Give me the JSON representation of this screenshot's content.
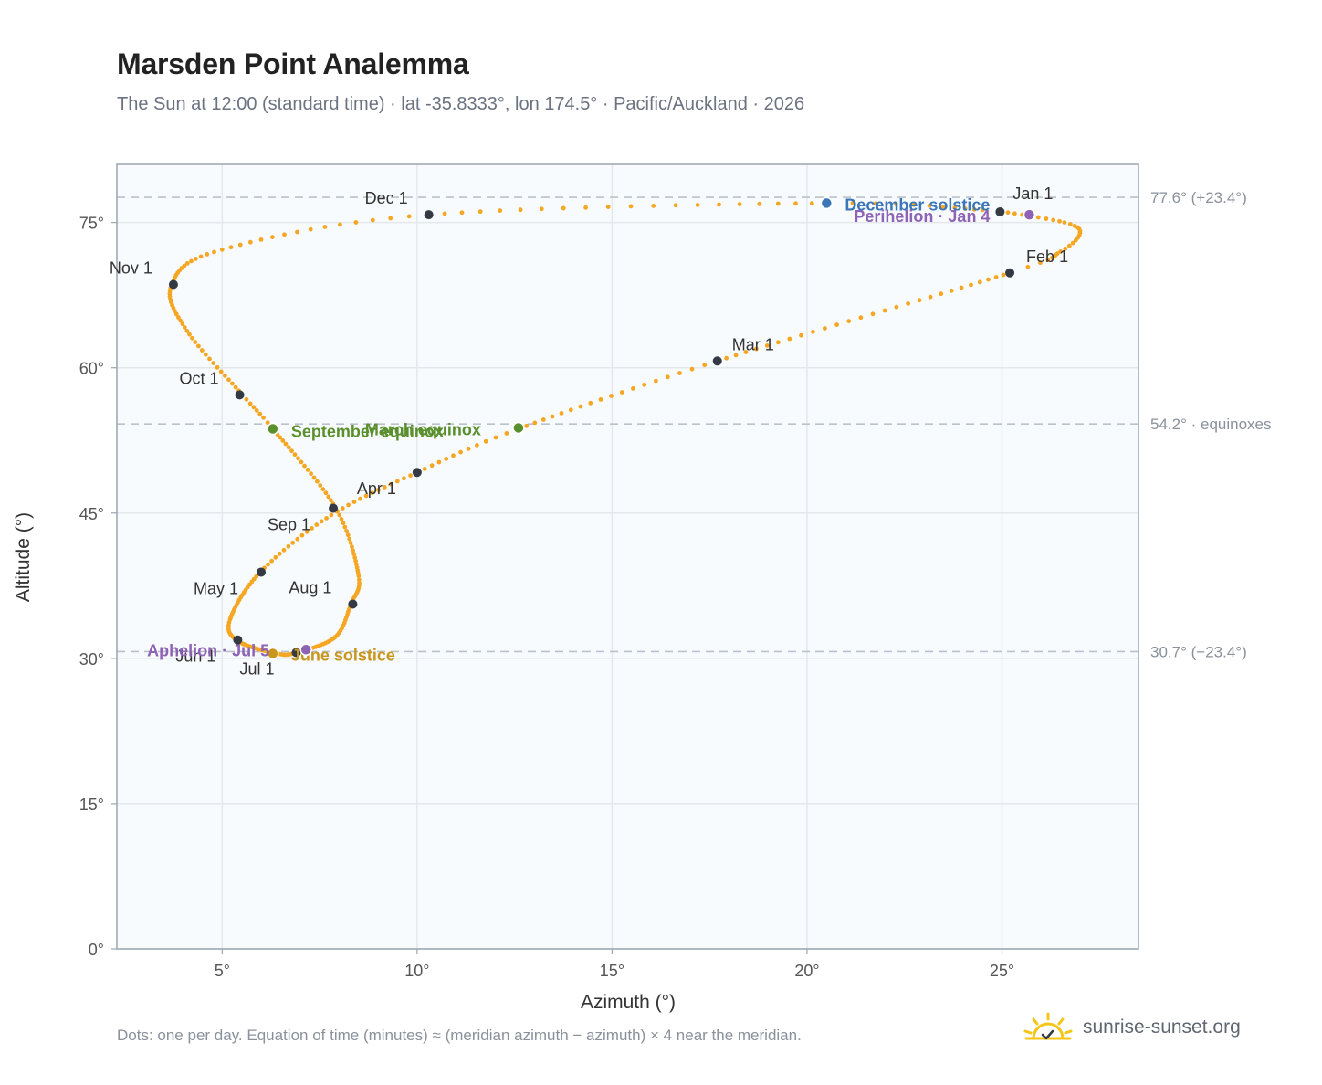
{
  "header": {
    "title": "Marsden Point Analemma",
    "subtitle": "The Sun at 12:00 (standard time) · lat -35.8333°, lon 174.5° · Pacific/Auckland · 2026"
  },
  "footer": {
    "note": "Dots: one per day. Equation of time (minutes) ≈ (meridian azimuth − azimuth) × 4 near the meridian.",
    "brand": "sunrise-sunset.org",
    "logo_icon": "sun-checkmark-icon"
  },
  "colors": {
    "curve": "#f5a623",
    "month_marker": "#333a44",
    "equinox": "#5a8f2e",
    "december_solstice": "#3a76b8",
    "june_solstice": "#c8961d",
    "apsis": "#8e63b5",
    "reference_line": "#b9c1ca",
    "plot_background": "#f8fbfd"
  },
  "chart_data": {
    "type": "scatter",
    "title": "Marsden Point Analemma",
    "xlabel": "Azimuth (°)",
    "ylabel": "Altitude (°)",
    "xlim": [
      2.3,
      28.5
    ],
    "ylim": [
      0,
      81
    ],
    "x_ticks": [
      5,
      10,
      15,
      20,
      25
    ],
    "x_tick_labels": [
      "5°",
      "10°",
      "15°",
      "20°",
      "25°"
    ],
    "y_ticks": [
      0,
      15,
      30,
      45,
      60,
      75
    ],
    "y_tick_labels": [
      "0°",
      "15°",
      "30°",
      "45°",
      "60°",
      "75°"
    ],
    "grid": true,
    "series": [
      {
        "style": "daily-dots",
        "points_per_day": 1,
        "path_keypoints": [
          {
            "day": 1,
            "az": 24.9,
            "alt": 76.2
          },
          {
            "day": 11,
            "az": 26.6,
            "alt": 75.0
          },
          {
            "day": 17,
            "az": 27.0,
            "alt": 73.9
          },
          {
            "day": 24,
            "az": 26.5,
            "alt": 72.0
          },
          {
            "day": 32,
            "az": 25.2,
            "alt": 69.8
          },
          {
            "day": 60,
            "az": 17.7,
            "alt": 60.7
          },
          {
            "day": 79,
            "az": 12.6,
            "alt": 53.7
          },
          {
            "day": 91,
            "az": 10.0,
            "alt": 49.2
          },
          {
            "day": 105,
            "az": 7.8,
            "alt": 44.8
          },
          {
            "day": 121,
            "az": 6.0,
            "alt": 39.0
          },
          {
            "day": 141,
            "az": 5.2,
            "alt": 34.0
          },
          {
            "day": 152,
            "az": 5.4,
            "alt": 31.8
          },
          {
            "day": 172,
            "az": 6.4,
            "alt": 30.5
          },
          {
            "day": 182,
            "az": 6.9,
            "alt": 30.6
          },
          {
            "day": 200,
            "az": 7.9,
            "alt": 32.2
          },
          {
            "day": 213,
            "az": 8.3,
            "alt": 35.6
          },
          {
            "day": 225,
            "az": 8.5,
            "alt": 38.5
          },
          {
            "day": 244,
            "az": 7.9,
            "alt": 45.6
          },
          {
            "day": 266,
            "az": 6.3,
            "alt": 53.7
          },
          {
            "day": 274,
            "az": 5.5,
            "alt": 57.3
          },
          {
            "day": 290,
            "az": 4.1,
            "alt": 63.8
          },
          {
            "day": 305,
            "az": 3.7,
            "alt": 68.5
          },
          {
            "day": 320,
            "az": 5.0,
            "alt": 72.2
          },
          {
            "day": 335,
            "az": 10.3,
            "alt": 75.8
          },
          {
            "day": 355,
            "az": 20.5,
            "alt": 77.0
          },
          {
            "day": 365,
            "az": 24.5,
            "alt": 76.3
          }
        ]
      }
    ],
    "month_markers": [
      {
        "label": "Jan 1",
        "az": 24.95,
        "alt": 76.1
      },
      {
        "label": "Feb 1",
        "az": 25.2,
        "alt": 69.8
      },
      {
        "label": "Mar 1",
        "az": 17.7,
        "alt": 60.7
      },
      {
        "label": "Apr 1",
        "az": 10.0,
        "alt": 49.2
      },
      {
        "label": "May 1",
        "az": 6.0,
        "alt": 38.9
      },
      {
        "label": "Jun 1",
        "az": 5.4,
        "alt": 31.9
      },
      {
        "label": "Jul 1",
        "az": 6.9,
        "alt": 30.6
      },
      {
        "label": "Aug 1",
        "az": 8.35,
        "alt": 35.6
      },
      {
        "label": "Sep 1",
        "az": 7.85,
        "alt": 45.5
      },
      {
        "label": "Oct 1",
        "az": 5.45,
        "alt": 57.2
      },
      {
        "label": "Nov 1",
        "az": 3.75,
        "alt": 68.6
      },
      {
        "label": "Dec 1",
        "az": 10.3,
        "alt": 75.8
      }
    ],
    "events": [
      {
        "label": "December solstice",
        "az": 20.5,
        "alt": 77.0,
        "kind": "december_solstice"
      },
      {
        "label": "Perihelion · Jan 4",
        "az": 25.7,
        "alt": 75.8,
        "kind": "apsis"
      },
      {
        "label": "March equinox",
        "az": 12.6,
        "alt": 53.8,
        "kind": "equinox"
      },
      {
        "label": "September equinox",
        "az": 6.3,
        "alt": 53.7,
        "kind": "equinox"
      },
      {
        "label": "June solstice",
        "az": 6.3,
        "alt": 30.5,
        "kind": "june_solstice"
      },
      {
        "label": "Aphelion · Jul 5",
        "az": 7.15,
        "alt": 30.9,
        "kind": "apsis"
      }
    ],
    "reference_lines": [
      {
        "alt": 77.6,
        "label": "77.6° (+23.4°)"
      },
      {
        "alt": 54.2,
        "label": "54.2° · equinoxes"
      },
      {
        "alt": 30.7,
        "label": "30.7° (−23.4°)"
      }
    ]
  }
}
